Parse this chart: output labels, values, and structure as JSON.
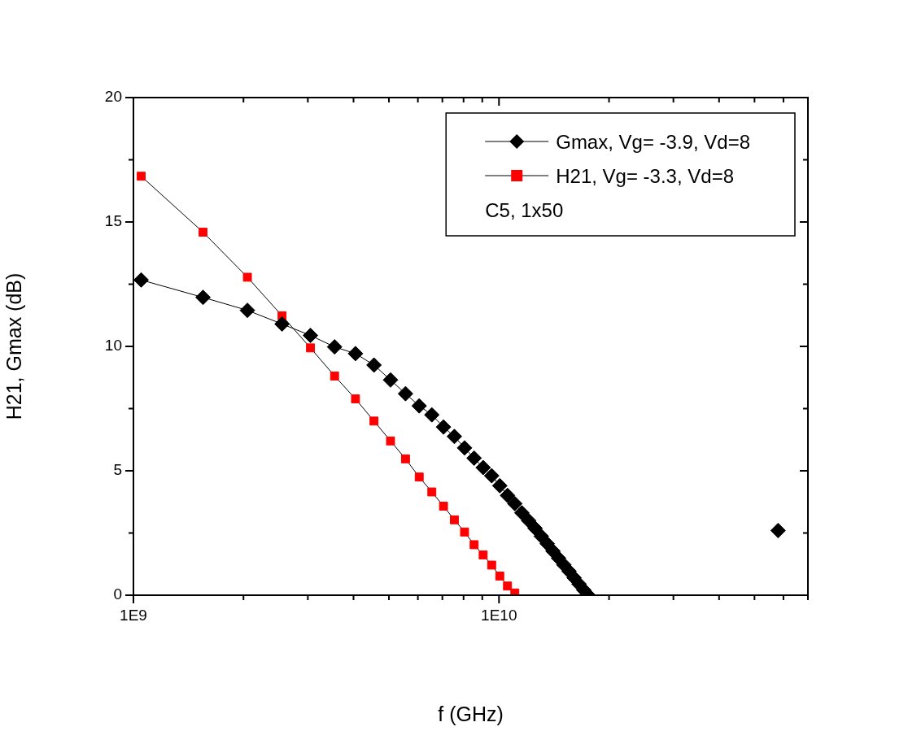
{
  "chart_data": {
    "type": "line",
    "xlabel": "f (GHz)",
    "ylabel": "H21, Gmax (dB)",
    "log": "x",
    "legend": "top right",
    "grid": false,
    "line_style": "solid",
    "xlim": [
      1000000000.0,
      70000000000.0
    ],
    "xticks": [
      {
        "value": 1000000000.0,
        "label": "1E9"
      },
      {
        "value": 2000000000.0,
        "label": null
      },
      {
        "value": 3000000000.0,
        "label": null
      },
      {
        "value": 4000000000.0,
        "label": null
      },
      {
        "value": 5000000000.0,
        "label": null
      },
      {
        "value": 6000000000.0,
        "label": null
      },
      {
        "value": 7000000000.0,
        "label": null
      },
      {
        "value": 8000000000.0,
        "label": null
      },
      {
        "value": 9000000000.0,
        "label": null
      },
      {
        "value": 10000000000.0,
        "label": "1E10"
      },
      {
        "value": 20000000000.0,
        "label": null
      },
      {
        "value": 30000000000.0,
        "label": null
      },
      {
        "value": 40000000000.0,
        "label": null
      },
      {
        "value": 50000000000.0,
        "label": null
      },
      {
        "value": 60000000000.0,
        "label": null
      },
      {
        "value": 70000000000.0,
        "label": null
      }
    ],
    "ylim": [
      0,
      20
    ],
    "yticks": [
      0,
      {
        "value": 2.5,
        "label": null
      },
      5,
      {
        "value": 7.5,
        "label": null
      },
      10,
      {
        "value": 12.5,
        "label": null
      },
      15,
      {
        "value": 17.5,
        "label": null
      },
      20
    ],
    "annotations": [
      "C5, 1x50"
    ],
    "series": [
      {
        "name": "Gmax, Vg= -3.9, Vd=8",
        "color": "#000000",
        "marker": "diamond",
        "x": [
          1050000000.0,
          1550000000.0,
          2050000000.0,
          2550000000.0,
          3050000000.0,
          3550000000.0,
          4050000000.0,
          4550000000.0,
          5050000000.0,
          5550000000.0,
          6050000000.0,
          6550000000.0,
          7050000000.0,
          7550000000.0,
          8050000000.0,
          8550000000.0,
          9050000000.0,
          9550000000.0,
          10050000000.0,
          10550000000.0,
          11050000000.0,
          11550000000.0,
          12050000000.0,
          12550000000.0,
          13050000000.0,
          13550000000.0,
          14050000000.0,
          14550000000.0,
          15050000000.0,
          15550000000.0,
          16050000000.0,
          16550000000.0,
          17050000000.0,
          17550000000.0
        ],
        "values": [
          12.67,
          11.97,
          11.45,
          10.9,
          10.44,
          9.98,
          9.71,
          9.25,
          8.65,
          8.1,
          7.61,
          7.25,
          6.76,
          6.38,
          5.92,
          5.51,
          5.13,
          4.8,
          4.4,
          4.01,
          3.68,
          3.31,
          3.0,
          2.69,
          2.37,
          2.07,
          1.77,
          1.49,
          1.22,
          0.96,
          0.7,
          0.45,
          0.21,
          0
        ]
      },
      {
        "name": "H21, Vg= -3.3, Vd=8",
        "color": "#ff0000",
        "marker": "square",
        "x": [
          1050000000.0,
          1550000000.0,
          2050000000.0,
          2550000000.0,
          3050000000.0,
          3550000000.0,
          4050000000.0,
          4550000000.0,
          5050000000.0,
          5550000000.0,
          6050000000.0,
          6550000000.0,
          7050000000.0,
          7550000000.0,
          8050000000.0,
          8550000000.0,
          9050000000.0,
          9550000000.0,
          10050000000.0,
          10550000000.0,
          11050000000.0
        ],
        "values": [
          16.84,
          14.59,
          12.78,
          11.23,
          9.94,
          8.81,
          7.89,
          7.0,
          6.2,
          5.48,
          4.75,
          4.15,
          3.58,
          3.03,
          2.54,
          2.03,
          1.62,
          1.21,
          0.77,
          0.37,
          0.09
        ]
      },
      {
        "type": "scatter",
        "color": "#000000",
        "marker": "diamond",
        "x": [
          58000000000.0
        ],
        "values": [
          2.6
        ]
      }
    ]
  }
}
